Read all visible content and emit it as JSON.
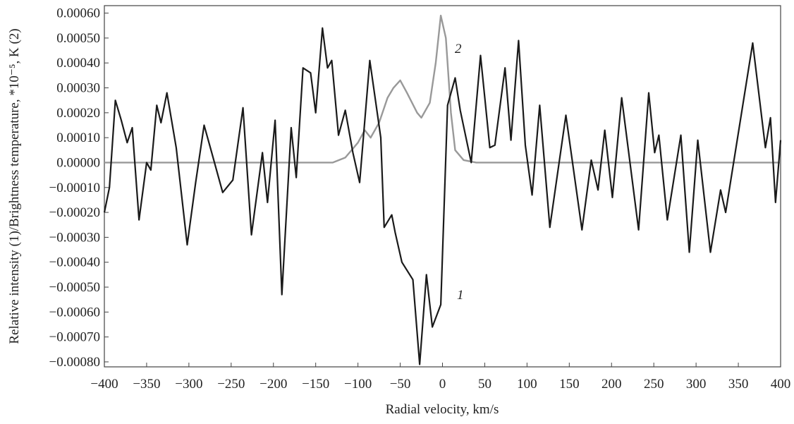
{
  "chart_data": {
    "type": "line",
    "xlabel": "Radial velocity, km/s",
    "ylabel": "Relative intensity (1)/Brightness temperature, *10⁻⁵, K (2)",
    "annotations": [
      "1",
      "2"
    ],
    "xlim": [
      -400,
      400
    ],
    "ylim": [
      -0.00082,
      0.00063
    ],
    "xticks": [
      {
        "value": -400,
        "label": "−400"
      },
      {
        "value": -350,
        "label": "−350"
      },
      {
        "value": -300,
        "label": "−300"
      },
      {
        "value": -250,
        "label": "−250"
      },
      {
        "value": -200,
        "label": "−200"
      },
      {
        "value": -150,
        "label": "−150"
      },
      {
        "value": -100,
        "label": "−100"
      },
      {
        "value": -50,
        "label": "−50"
      },
      0,
      50,
      100,
      150,
      200,
      250,
      300,
      350,
      400
    ],
    "yticks": [
      {
        "value": 0.0006,
        "label": "0.00060"
      },
      {
        "value": 0.0005,
        "label": "0.00050"
      },
      {
        "value": 0.0004,
        "label": "0.00040"
      },
      {
        "value": 0.0003,
        "label": "0.00030"
      },
      {
        "value": 0.0002,
        "label": "0.00020"
      },
      {
        "value": 0.0001,
        "label": "0.00010"
      },
      {
        "value": 0,
        "label": "0.00000"
      },
      {
        "value": -0.0001,
        "label": "−0.00010"
      },
      {
        "value": -0.0002,
        "label": "−0.00020"
      },
      {
        "value": -0.0003,
        "label": "−0.00030"
      },
      {
        "value": -0.0004,
        "label": "−0.00040"
      },
      {
        "value": -0.0005,
        "label": "−0.00050"
      },
      {
        "value": -0.0006,
        "label": "−0.00060"
      },
      {
        "value": -0.0007,
        "label": "−0.00070"
      },
      {
        "value": -0.0008,
        "label": "−0.00080"
      }
    ],
    "series": [
      {
        "color": "#1a1a1a",
        "x": [
          -400,
          -394,
          -387,
          -380,
          -373,
          -367,
          -359,
          -350,
          -345,
          -338,
          -333,
          -326,
          -315,
          -302,
          -292,
          -282,
          -273,
          -260,
          -248,
          -236,
          -226,
          -213,
          -207,
          -198,
          -190,
          -179,
          -173,
          -165,
          -156,
          -150,
          -142,
          -136,
          -131,
          -123,
          -115,
          -106,
          -98,
          -86,
          -73,
          -69,
          -60,
          -56,
          -48,
          -35,
          -27,
          -19,
          -12,
          -2,
          6,
          15,
          21,
          34,
          45,
          56,
          62,
          74,
          81,
          90,
          98,
          106,
          115,
          127,
          146,
          165,
          176,
          184,
          192,
          201,
          212,
          232,
          244,
          251,
          256,
          266,
          282,
          292,
          302,
          317,
          329,
          335,
          351,
          367,
          382,
          388,
          394,
          400
        ],
        "values": [
          -0.0002,
          -0.0001,
          0.00025,
          0.00017,
          8e-05,
          0.00014,
          -0.00023,
          0,
          -3e-05,
          0.00023,
          0.00016,
          0.00028,
          6e-05,
          -0.00033,
          -8e-05,
          0.00015,
          4e-05,
          -0.00012,
          -7e-05,
          0.00022,
          -0.00029,
          4e-05,
          -0.00016,
          0.00017,
          -0.00053,
          0.00014,
          -6e-05,
          0.00038,
          0.00036,
          0.0002,
          0.00054,
          0.00038,
          0.00041,
          0.00011,
          0.00021,
          4e-05,
          -8e-05,
          0.00041,
          0.0001,
          -0.00026,
          -0.00021,
          -0.00028,
          -0.0004,
          -0.00047,
          -0.00081,
          -0.00045,
          -0.00066,
          -0.00057,
          0.00023,
          0.00034,
          0.00021,
          0,
          0.00043,
          6e-05,
          7e-05,
          0.00038,
          9e-05,
          0.00049,
          7e-05,
          -0.00013,
          0.00023,
          -0.00026,
          0.00019,
          -0.00027,
          1e-05,
          -0.00011,
          0.00013,
          -0.00014,
          0.00026,
          -0.00027,
          0.00028,
          4e-05,
          0.00011,
          -0.00023,
          0.00011,
          -0.00036,
          9e-05,
          -0.00036,
          -0.00011,
          -0.0002,
          0.00014,
          0.00048,
          6e-05,
          0.00018,
          -0.00016,
          9e-05
        ]
      },
      {
        "color": "#999999",
        "x": [
          -400,
          -130,
          -115,
          -100,
          -92,
          -85,
          -75,
          -65,
          -58,
          -50,
          -42,
          -30,
          -25,
          -15,
          -8,
          -2,
          4,
          10,
          15,
          25,
          40,
          400
        ],
        "values": [
          0,
          0,
          2e-05,
          8e-05,
          0.00013,
          0.0001,
          0.00016,
          0.00026,
          0.0003,
          0.00033,
          0.00028,
          0.0002,
          0.00018,
          0.00024,
          0.0004,
          0.00059,
          0.0005,
          0.0002,
          5e-05,
          1e-05,
          0,
          0
        ]
      }
    ]
  }
}
